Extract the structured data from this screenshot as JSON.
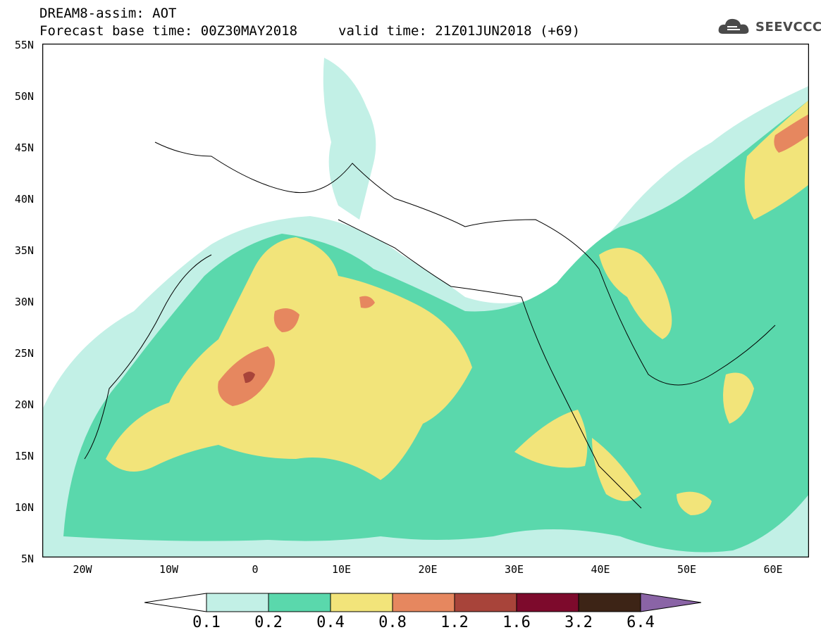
{
  "header": {
    "line1": "DREAM8-assim: AOT",
    "line2": "Forecast base time: 00Z30MAY2018",
    "line3": "valid time: 21Z01JUN2018 (+69)"
  },
  "logo": {
    "text": "SEEVCCC",
    "icon": "cloud-icon"
  },
  "axes": {
    "lat_labels": [
      "55N",
      "50N",
      "45N",
      "40N",
      "35N",
      "30N",
      "25N",
      "20N",
      "15N",
      "10N",
      "5N"
    ],
    "lon_labels": [
      "20W",
      "10W",
      "0",
      "10E",
      "20E",
      "30E",
      "40E",
      "50E",
      "60E"
    ]
  },
  "colorbar": {
    "labels": [
      "0.1",
      "0.2",
      "0.4",
      "0.8",
      "1.2",
      "1.6",
      "3.2",
      "6.4"
    ],
    "colors": [
      "#c2f0e6",
      "#5ad8ac",
      "#f2e47a",
      "#e6875f",
      "#a8443a",
      "#7d0a2c",
      "#3d2416",
      "#8a64a6"
    ],
    "under_color": "#ffffff"
  },
  "map": {
    "ocean_color": "#ffffff",
    "aot_colors": {
      "light": "#c2f0e6",
      "green": "#5ad8ac",
      "yellow": "#f2e47a",
      "orange": "#e6875f",
      "red": "#a8443a"
    }
  }
}
